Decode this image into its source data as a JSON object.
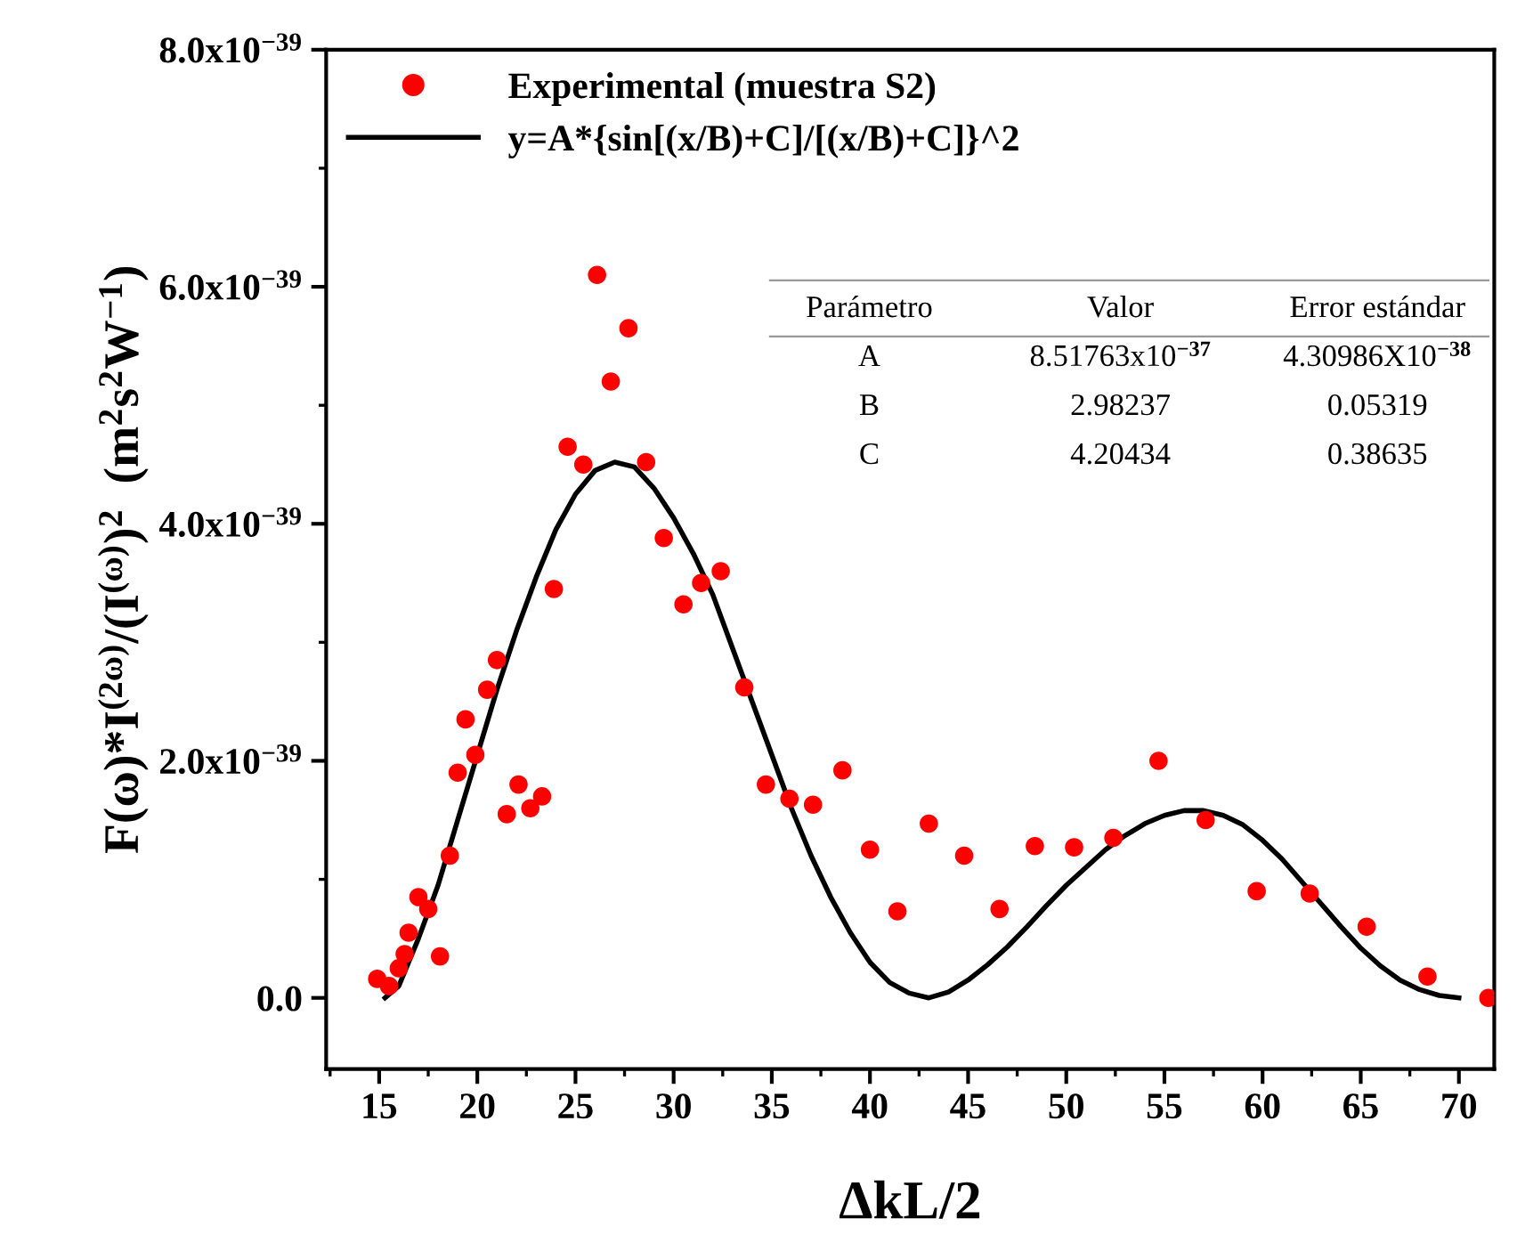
{
  "chart_data": {
    "type": "scatter",
    "xlabel": "ΔkL/2",
    "ylabel": "F(ω)*I$^{(2ω)}$/(I$^{(ω)}$)$^{2}$  (m$^{2}$s$^{2}$W$^{−1}$)",
    "xlim": [
      12.3,
      71.8
    ],
    "xticks": [
      15,
      20,
      25,
      30,
      35,
      40,
      45,
      50,
      55,
      60,
      65,
      70
    ],
    "ylim": [
      -6e-40,
      8e-39
    ],
    "yticks": [
      {
        "value": 0,
        "label": "0.0"
      },
      {
        "value": 2e-39,
        "label": "2.0x10$^{−39}$"
      },
      {
        "value": 4e-39,
        "label": "4.0x10$^{−39}$"
      },
      {
        "value": 6e-39,
        "label": "6.0x10$^{−39}$"
      },
      {
        "value": 8e-39,
        "label": "8.0x10$^{−39}$"
      }
    ],
    "grid": false,
    "legend": "top left",
    "series": [
      {
        "name": "Experimental (muestra S2)",
        "marker": "circle",
        "color": "#ff0000",
        "x": [
          14.9,
          15.5,
          16.0,
          16.3,
          16.5,
          17.0,
          17.5,
          18.1,
          18.6,
          19.0,
          19.4,
          19.9,
          20.5,
          21.0,
          21.5,
          22.1,
          22.7,
          23.3,
          23.9,
          24.6,
          25.4,
          26.1,
          26.8,
          27.7,
          28.6,
          29.5,
          30.5,
          31.4,
          32.4,
          33.6,
          34.7,
          35.9,
          37.1,
          38.6,
          40.0,
          41.4,
          43.0,
          44.8,
          46.6,
          48.4,
          50.4,
          52.4,
          54.7,
          57.1,
          59.7,
          62.4,
          65.3,
          68.4,
          71.5
        ],
        "values": [
          1.6e-40,
          1e-40,
          2.5e-40,
          3.7e-40,
          5.5e-40,
          8.5e-40,
          7.5e-40,
          3.5e-40,
          1.2e-39,
          1.9e-39,
          2.35e-39,
          2.05e-39,
          2.6e-39,
          2.85e-39,
          1.55e-39,
          1.8e-39,
          1.6e-39,
          1.7e-39,
          3.45e-39,
          4.65e-39,
          4.5e-39,
          6.1e-39,
          5.2e-39,
          5.65e-39,
          4.52e-39,
          3.88e-39,
          3.32e-39,
          3.5e-39,
          3.6e-39,
          2.62e-39,
          1.8e-39,
          1.68e-39,
          1.63e-39,
          1.92e-39,
          1.25e-39,
          7.3e-40,
          1.47e-39,
          1.2e-39,
          7.5e-40,
          1.28e-39,
          1.27e-39,
          1.35e-39,
          2e-39,
          1.5e-39,
          9e-40,
          8.8e-40,
          6e-40,
          1.8e-40,
          0.0
        ]
      },
      {
        "name": "y=A*{sin[(x/B)+C]/[(x/B)+C]}^2",
        "type": "line",
        "marker": "none",
        "line_style": "solid",
        "color": "#000000",
        "x": [
          15.3,
          16,
          17,
          18,
          19,
          20,
          21,
          22,
          23,
          24,
          25,
          26,
          27,
          28,
          29,
          30,
          31,
          32,
          33,
          34,
          35,
          36,
          37,
          38,
          39,
          40,
          41,
          42,
          43,
          44,
          45,
          46,
          47,
          48,
          49,
          50,
          51,
          52,
          53,
          54,
          55,
          56,
          57,
          58,
          59,
          60,
          61,
          62,
          63,
          64,
          65,
          66,
          67,
          68,
          69,
          70
        ],
        "values": [
          0.0,
          1e-40,
          5e-40,
          9.5e-40,
          1.5e-39,
          2.05e-39,
          2.6e-39,
          3.1e-39,
          3.55e-39,
          3.95e-39,
          4.25e-39,
          4.45e-39,
          4.52e-39,
          4.48e-39,
          4.3e-39,
          4.05e-39,
          3.75e-39,
          3.4e-39,
          2.95e-39,
          2.5e-39,
          2.05e-39,
          1.6e-39,
          1.2e-39,
          8.5e-40,
          5.5e-40,
          3e-40,
          1.3e-40,
          4e-41,
          0.0,
          5e-41,
          1.5e-40,
          2.8e-40,
          4.3e-40,
          6e-40,
          7.8e-40,
          9.5e-40,
          1.1e-39,
          1.25e-39,
          1.37e-39,
          1.47e-39,
          1.54e-39,
          1.58e-39,
          1.58e-39,
          1.54e-39,
          1.46e-39,
          1.33e-39,
          1.17e-39,
          9.8e-40,
          7.9e-40,
          6e-40,
          4.2e-40,
          2.7e-40,
          1.5e-40,
          7e-41,
          2e-41,
          0.0
        ]
      }
    ],
    "annotations": [
      "Parámetro",
      "Valor",
      "Error estándar",
      "A",
      "8.51763x10$^{−37}$",
      "4.30986X10$^{−38}$",
      "B",
      "2.98237",
      "0.05319",
      "C",
      "4.20434",
      "0.38635"
    ]
  }
}
